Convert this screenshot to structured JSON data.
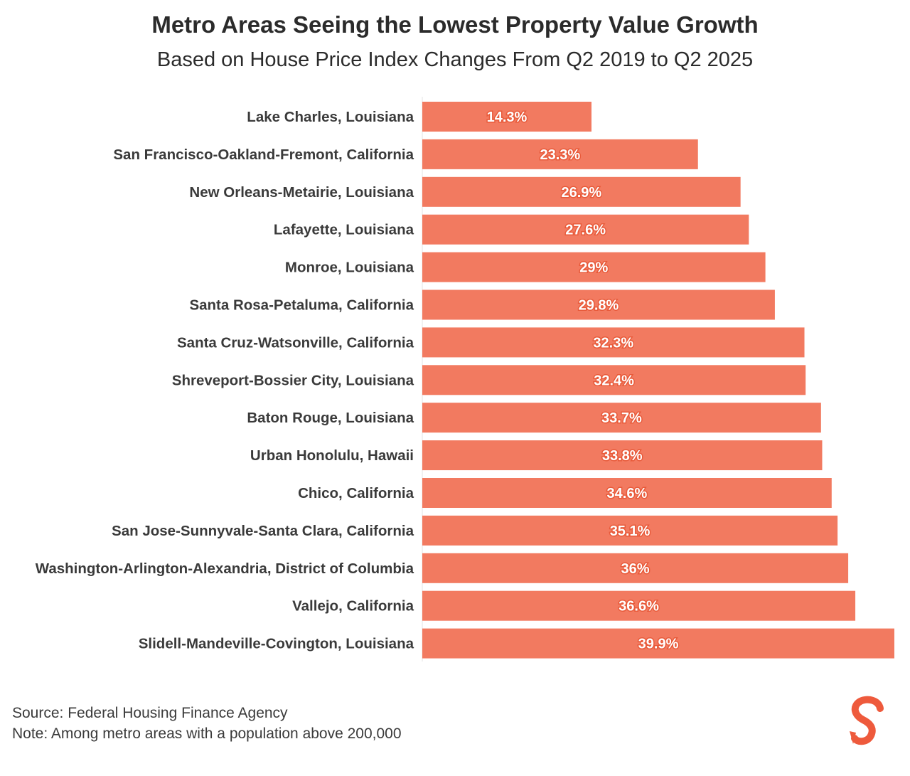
{
  "chart_data": {
    "type": "bar",
    "orientation": "horizontal",
    "title": "Metro Areas Seeing the Lowest Property Value Growth",
    "subtitle": "Based on House Price Index Changes From Q2 2019 to Q2 2025",
    "categories": [
      "Lake Charles, Louisiana",
      "San Francisco-Oakland-Fremont, California",
      "New Orleans-Metairie, Louisiana",
      "Lafayette, Louisiana",
      "Monroe, Louisiana",
      "Santa Rosa-Petaluma, California",
      "Santa Cruz-Watsonville, California",
      "Shreveport-Bossier City, Louisiana",
      "Baton Rouge, Louisiana",
      "Urban Honolulu, Hawaii",
      "Chico, California",
      "San Jose-Sunnyvale-Santa Clara, California",
      "Washington-Arlington-Alexandria, District of Columbia",
      "Vallejo, California",
      "Slidell-Mandeville-Covington, Louisiana"
    ],
    "values": [
      14.3,
      23.3,
      26.9,
      27.6,
      29,
      29.8,
      32.3,
      32.4,
      33.7,
      33.8,
      34.6,
      35.1,
      36,
      36.6,
      39.9
    ],
    "labels": [
      "14.3%",
      "23.3%",
      "26.9%",
      "27.6%",
      "29%",
      "29.8%",
      "32.3%",
      "32.4%",
      "33.7%",
      "33.8%",
      "34.6%",
      "35.1%",
      "36%",
      "36.6%",
      "39.9%"
    ],
    "xlim": [
      0,
      39.9
    ],
    "xlabel": "",
    "ylabel": "",
    "grid": false,
    "bar_color": "#f27a60"
  },
  "footer": {
    "source": "Source: Federal Housing Finance Agency",
    "note": "Note: Among metro areas with a population above 200,000"
  },
  "logo": {
    "text": "S",
    "color": "#ee5a3c"
  }
}
